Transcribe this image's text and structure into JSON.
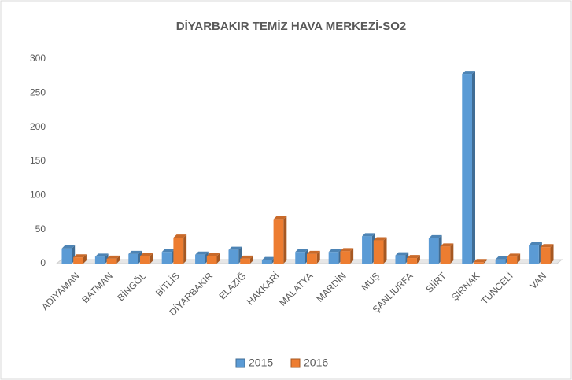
{
  "chart_data": {
    "type": "bar",
    "title": "DİYARBAKIR TEMİZ HAVA MERKEZİ-SO2",
    "categories": [
      "ADIYAMAN",
      "BATMAN",
      "BİNGÖL",
      "BİTLİS",
      "DİYARBAKIR",
      "ELAZIĞ",
      "HAKKARİ",
      "MALATYA",
      "MARDİN",
      "MUŞ",
      "ŞANLIURFA",
      "SİİRT",
      "ŞIRNAK",
      "TUNCELİ",
      "VAN"
    ],
    "series": [
      {
        "name": "2015",
        "color": "#5b9bd5",
        "values": [
          22,
          10,
          14,
          17,
          13,
          20,
          5,
          17,
          17,
          40,
          12,
          37,
          278,
          6,
          27
        ]
      },
      {
        "name": "2016",
        "color": "#ed7d31",
        "values": [
          9,
          7,
          11,
          38,
          11,
          7,
          65,
          14,
          18,
          34,
          8,
          25,
          2,
          10,
          24
        ]
      }
    ],
    "ylim": [
      0,
      300
    ],
    "yticks": [
      0,
      50,
      100,
      150,
      200,
      250,
      300
    ],
    "grid": false,
    "legend": "bottom"
  }
}
